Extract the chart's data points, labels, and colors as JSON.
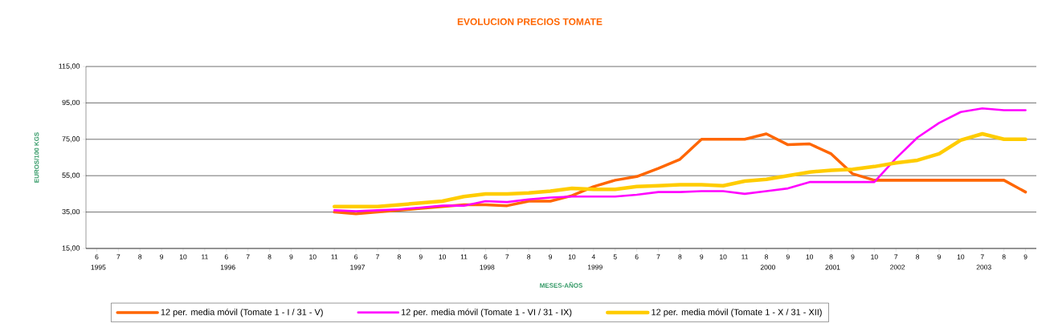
{
  "chart_data": {
    "type": "line",
    "title": "EVOLUCION PRECIOS TOMATE",
    "xlabel": "MESES-AÑOS",
    "ylabel": "EUROS/100 KGS",
    "categories": [
      "6 1995",
      "7",
      "8",
      "9",
      "10",
      "11",
      "6 1996",
      "7",
      "8",
      "9",
      "10",
      "11",
      "6 1997",
      "7",
      "8",
      "9",
      "10",
      "11",
      "6 1998",
      "7",
      "8",
      "9",
      "10",
      "4 1999",
      "5",
      "6",
      "7",
      "8",
      "9",
      "10",
      "11",
      "8 2000",
      "9",
      "10",
      "8 2001",
      "9",
      "10",
      "7 2002",
      "8",
      "9",
      "10",
      "7 2003",
      "8",
      "9"
    ],
    "series": [
      {
        "name": "12 per. media móvil (Tomate 1 - I / 31 - V)",
        "color": "#ff6600",
        "values": [
          null,
          null,
          null,
          null,
          null,
          null,
          null,
          null,
          null,
          null,
          null,
          35,
          34,
          35,
          36,
          37,
          38,
          39,
          39,
          38.5,
          41,
          41,
          44,
          49,
          52.5,
          54.5,
          59,
          64,
          75,
          75,
          75,
          78,
          72,
          72.5,
          67,
          56,
          52.5,
          52.5,
          52.5,
          52.5,
          52.5,
          52.5,
          52.5,
          46
        ]
      },
      {
        "name": "12 per. media móvil (Tomate 1 - VI / 31 - IX)",
        "color": "#ff00ff",
        "values": [
          null,
          null,
          null,
          null,
          null,
          null,
          null,
          null,
          null,
          null,
          null,
          36,
          35.5,
          36,
          36.5,
          37.5,
          38.5,
          38.5,
          41,
          40.5,
          42,
          43,
          43.5,
          43.5,
          43.5,
          44.5,
          46,
          46,
          46.5,
          46.5,
          45,
          46.5,
          48,
          51.5,
          51.5,
          51.5,
          51.5,
          64.5,
          76,
          84,
          90,
          92,
          91,
          91
        ]
      },
      {
        "name": "12 per. media móvil (Tomate 1 - X / 31 - XII)",
        "color": "#ffcc00",
        "values": [
          null,
          null,
          null,
          null,
          null,
          null,
          null,
          null,
          null,
          null,
          null,
          38,
          38,
          38,
          39,
          40,
          41,
          43.5,
          45,
          45,
          45.5,
          46.5,
          48,
          47.5,
          47.5,
          49,
          49.5,
          50,
          50,
          49.5,
          52,
          53,
          55,
          57,
          58,
          58.5,
          60,
          62,
          63.5,
          67,
          74.5,
          78,
          75,
          75
        ]
      }
    ],
    "ylim": [
      15,
      115
    ],
    "yticks": [
      {
        "value": 15,
        "label": "15,00"
      },
      {
        "value": 35,
        "label": "35,00"
      },
      {
        "value": 55,
        "label": "55,00"
      },
      {
        "value": 75,
        "label": "75,00"
      },
      {
        "value": 95,
        "label": "95,00"
      },
      {
        "value": 115,
        "label": "115,00"
      }
    ],
    "grid": "y",
    "legend": "bottom"
  }
}
